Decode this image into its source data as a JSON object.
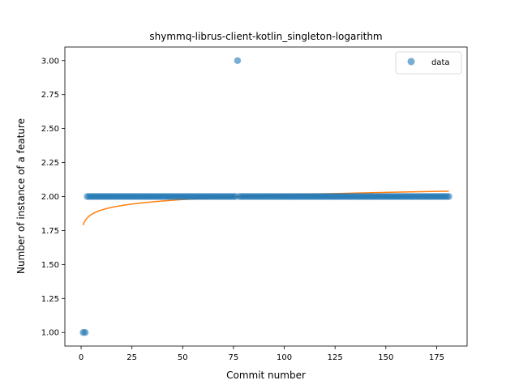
{
  "chart_data": {
    "type": "scatter",
    "title": "shymmq-librus-client-kotlin_singleton-logarithm",
    "xlabel": "Commit number",
    "ylabel": "Number of instance of a feature",
    "xlim": [
      -8,
      190
    ],
    "ylim": [
      0.9,
      3.1
    ],
    "xticks": [
      0,
      25,
      50,
      75,
      100,
      125,
      150,
      175
    ],
    "yticks": [
      1.0,
      1.25,
      1.5,
      1.75,
      2.0,
      2.25,
      2.5,
      2.75,
      3.0
    ],
    "xtick_labels": [
      "0",
      "25",
      "50",
      "75",
      "100",
      "125",
      "150",
      "175"
    ],
    "ytick_labels": [
      "1.00",
      "1.25",
      "1.50",
      "1.75",
      "2.00",
      "2.25",
      "2.50",
      "2.75",
      "3.00"
    ],
    "legend": {
      "position": "top-right",
      "entries": [
        "data"
      ]
    },
    "grid": false,
    "colors": {
      "data": "#1f77b4",
      "fit": "#ff7f0e"
    },
    "series": [
      {
        "name": "data",
        "kind": "scatter",
        "points": [
          {
            "x": 1,
            "y": 1
          },
          {
            "x": 2,
            "y": 1
          },
          {
            "x": 77,
            "y": 3
          }
        ],
        "constant_runs": [
          {
            "x_start": 3,
            "x_end": 76,
            "y": 2
          },
          {
            "x_start": 78,
            "x_end": 181,
            "y": 2
          }
        ]
      },
      {
        "name": "",
        "kind": "line",
        "model": "logarithmic",
        "x_range": [
          1,
          181
        ],
        "a": 1.79,
        "b": 0.048
      }
    ]
  }
}
